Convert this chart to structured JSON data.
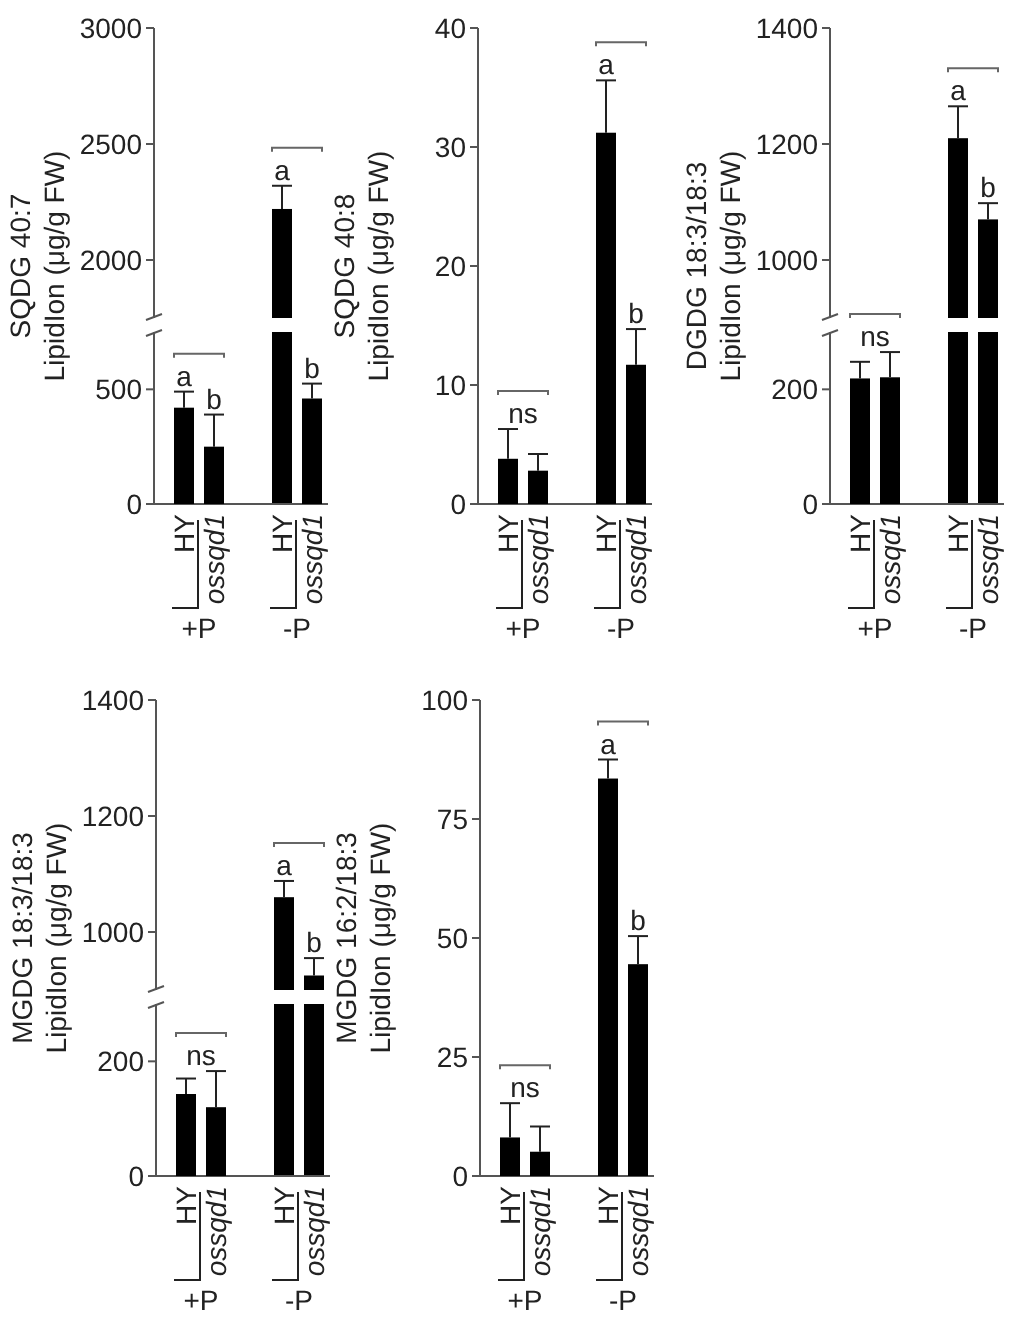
{
  "chart_data": [
    {
      "type": "bar",
      "tick_labels": "y",
      "categories": [
        "HY",
        "ossqd1",
        "HY",
        "ossqd1"
      ],
      "values": [
        null,
        null,
        2220,
        null
      ],
      "errors": [
        null,
        null,
        [
          2220,
          2320
        ],
        null
      ],
      "color": "#000000",
      "ylim": [
        1750,
        3000
      ],
      "yticks": [
        2000,
        2500,
        3000
      ],
      "value_labels": [
        null,
        null,
        "a",
        null
      ]
    },
    {
      "type": "bar",
      "ylabel": "SQDG 40:7\nLipidIon (μg/g FW)",
      "categories": [
        "HY",
        "ossqd1",
        "HY",
        "ossqd1"
      ],
      "values": [
        420,
        250,
        null,
        460
      ],
      "errors": [
        [
          420,
          490
        ],
        [
          250,
          390
        ],
        null,
        [
          460,
          525
        ]
      ],
      "color": "#000000",
      "ylim": [
        0,
        750
      ],
      "yticks": [
        0,
        500
      ],
      "value_labels": [
        "a",
        "b",
        null,
        "b"
      ],
      "annotations": [
        "+P",
        "-P"
      ]
    },
    {
      "type": "bar",
      "ylabel": "SQDG 40:8\nLipidIon (μg/g FW)",
      "categories": [
        "HY",
        "ossqd1",
        "HY",
        "ossqd1"
      ],
      "values": [
        3.8,
        2.8,
        31.2,
        11.7
      ],
      "errors": [
        [
          3.8,
          6.3
        ],
        [
          2.8,
          4.2
        ],
        [
          31.2,
          35.6
        ],
        [
          11.7,
          14.7
        ]
      ],
      "color": "#000000",
      "ylim": [
        0,
        40
      ],
      "yticks": [
        0,
        10,
        20,
        30,
        40
      ],
      "value_labels": [
        "ns",
        null,
        "a",
        "b"
      ],
      "annotations": [
        "+P",
        "-P"
      ]
    },
    {
      "type": "bar",
      "tick_labels": "y",
      "categories": [
        "HY",
        "ossqd1",
        "HY",
        "ossqd1"
      ],
      "values": [
        null,
        null,
        1210,
        1070
      ],
      "errors": [
        null,
        null,
        [
          1210,
          1265
        ],
        [
          1070,
          1098
        ]
      ],
      "color": "#000000",
      "ylim": [
        900,
        1400
      ],
      "yticks": [
        1000,
        1200,
        1400
      ],
      "value_labels": [
        null,
        null,
        "a",
        "b"
      ]
    },
    {
      "type": "bar",
      "ylabel": "DGDG 18:3/18:3\nLipidIon (μg/g FW)",
      "categories": [
        "HY",
        "ossqd1",
        "HY",
        "ossqd1"
      ],
      "values": [
        219,
        221,
        null,
        null
      ],
      "errors": [
        [
          219,
          248
        ],
        [
          221,
          265
        ],
        null,
        null
      ],
      "color": "#000000",
      "ylim": [
        0,
        300
      ],
      "yticks": [
        0,
        200
      ],
      "value_labels": [
        "ns",
        null,
        null,
        null
      ],
      "annotations": [
        "+P",
        "-P"
      ]
    },
    {
      "type": "bar",
      "tick_labels": "y",
      "categories": [
        "HY",
        "ossqd1",
        "HY",
        "ossqd1"
      ],
      "values": [
        null,
        null,
        1060,
        925
      ],
      "errors": [
        null,
        null,
        [
          1060,
          1088
        ],
        [
          925,
          955
        ]
      ],
      "color": "#000000",
      "ylim": [
        900,
        1400
      ],
      "yticks": [
        1000,
        1200,
        1400
      ],
      "value_labels": [
        null,
        null,
        "a",
        "b"
      ]
    },
    {
      "type": "bar",
      "ylabel": "MGDG 18:3/18:3\nLipidIon (μg/g FW)",
      "categories": [
        "HY",
        "ossqd1",
        "HY",
        "ossqd1"
      ],
      "values": [
        143,
        120,
        null,
        null
      ],
      "errors": [
        [
          143,
          170
        ],
        [
          120,
          183
        ],
        null,
        null
      ],
      "color": "#000000",
      "ylim": [
        0,
        300
      ],
      "yticks": [
        0,
        200
      ],
      "value_labels": [
        "ns",
        null,
        null,
        null
      ],
      "annotations": [
        "+P",
        "-P"
      ]
    },
    {
      "type": "bar",
      "ylabel": "MGDG 16:2/18:3\nLipidIon (μg/g FW)",
      "categories": [
        "HY",
        "ossqd1",
        "HY",
        "ossqd1"
      ],
      "values": [
        8.1,
        5.1,
        83.5,
        44.5
      ],
      "errors": [
        [
          8.1,
          15.3
        ],
        [
          5.1,
          10.4
        ],
        [
          83.5,
          87.5
        ],
        [
          44.5,
          50.4
        ]
      ],
      "color": "#000000",
      "ylim": [
        0,
        100
      ],
      "yticks": [
        0,
        25,
        50,
        75,
        100
      ],
      "value_labels": [
        "ns",
        null,
        "a",
        "b"
      ],
      "annotations": [
        "+P",
        "-P"
      ]
    }
  ]
}
